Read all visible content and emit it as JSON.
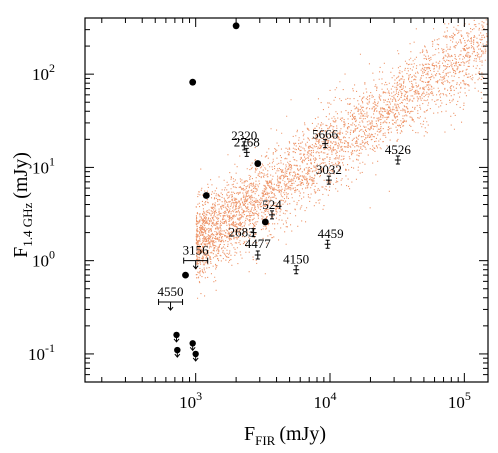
{
  "chart_data": {
    "type": "scatter",
    "x_axis": {
      "scale": "log",
      "range": [
        150,
        150000
      ],
      "ticks": [
        {
          "value": 1000,
          "label": "10",
          "exp": "3"
        },
        {
          "value": 10000,
          "label": "10",
          "exp": "4"
        },
        {
          "value": 100000,
          "label": "10",
          "exp": "5"
        }
      ],
      "label_main": "F",
      "label_sub": "FIR",
      "label_unit": "(mJy)"
    },
    "y_axis": {
      "scale": "log",
      "range": [
        0.05,
        400
      ],
      "ticks": [
        {
          "value": 0.1,
          "label": "10",
          "exp": "-1"
        },
        {
          "value": 1,
          "label": "10",
          "exp": "0"
        },
        {
          "value": 10,
          "label": "10",
          "exp": "1"
        },
        {
          "value": 100,
          "label": "10",
          "exp": "2"
        }
      ],
      "label_main": "F",
      "label_sub": "1.4 GHz",
      "label_unit": "(mJy)"
    },
    "colors": {
      "background_cloud": "#e8743b",
      "points": "#000000"
    },
    "background_cloud": {
      "count": 4000,
      "x_log_range": [
        3.0,
        5.3
      ],
      "y_log_center_at_x3_3": 0.5,
      "slope": 1.0,
      "scatter_dex": 0.22
    },
    "filled_points": [
      {
        "x": 2000,
        "y": 330
      },
      {
        "x": 950,
        "y": 82
      },
      {
        "x": 2900,
        "y": 11
      },
      {
        "x": 1200,
        "y": 5
      },
      {
        "x": 3300,
        "y": 2.6
      },
      {
        "x": 840,
        "y": 0.7
      }
    ],
    "upper_limit_points": [
      {
        "x": 720,
        "y": 0.16
      },
      {
        "x": 730,
        "y": 0.11
      },
      {
        "x": 950,
        "y": 0.13
      },
      {
        "x": 1000,
        "y": 0.1
      }
    ],
    "labeled_sources": [
      {
        "id": "2320",
        "x": 2300,
        "y": 17,
        "type": "errorbar"
      },
      {
        "id": "2768",
        "x": 2400,
        "y": 14.5,
        "type": "errorbar"
      },
      {
        "id": "5666",
        "x": 9200,
        "y": 18,
        "type": "errorbar"
      },
      {
        "id": "4526",
        "x": 32000,
        "y": 12,
        "type": "errorbar"
      },
      {
        "id": "3032",
        "x": 9800,
        "y": 7.3,
        "type": "errorbar"
      },
      {
        "id": "524",
        "x": 3700,
        "y": 3.1,
        "type": "errorbar"
      },
      {
        "id": "2683",
        "x": 2700,
        "y": 2.0,
        "type": "errorbar"
      },
      {
        "id": "4477",
        "x": 2900,
        "y": 1.15,
        "type": "errorbar"
      },
      {
        "id": "4459",
        "x": 9600,
        "y": 1.5,
        "type": "errorbar"
      },
      {
        "id": "4150",
        "x": 5600,
        "y": 0.8,
        "type": "errorbar"
      },
      {
        "id": "3156",
        "x": 1000,
        "y": 1.0,
        "type": "upper-limit"
      },
      {
        "id": "4550",
        "x": 650,
        "y": 0.36,
        "type": "upper-limit"
      }
    ]
  }
}
